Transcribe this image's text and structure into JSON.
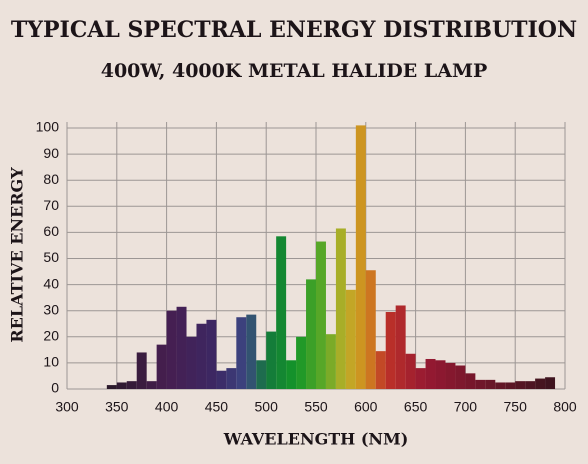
{
  "chart_data": {
    "type": "histogram",
    "title": "TYPICAL SPECTRAL ENERGY DISTRIBUTION",
    "subtitle": "400W, 4000K METAL HALIDE LAMP",
    "x_label": "WAVELENGTH (NM)",
    "y_label": "RELATIVE ENERGY",
    "bins": [
      340,
      350,
      360,
      370,
      380,
      390,
      400,
      410,
      420,
      430,
      440,
      450,
      460,
      470,
      480,
      490,
      500,
      510,
      520,
      530,
      540,
      550,
      560,
      570,
      580,
      590,
      600,
      610,
      620,
      630,
      640,
      650,
      660,
      670,
      680,
      690,
      700,
      710,
      720,
      730,
      740,
      750,
      760,
      770,
      780,
      790
    ],
    "counts": [
      1.5,
      2.5,
      3,
      14,
      3,
      17,
      30,
      31.5,
      20,
      25,
      26.5,
      7,
      8,
      27.5,
      28.5,
      11,
      22,
      58.5,
      11,
      20,
      42,
      56.5,
      21,
      61.5,
      38,
      101,
      45.5,
      14.5,
      29.5,
      32,
      13.5,
      8,
      11.5,
      11,
      10,
      9,
      6,
      3.5,
      3.5,
      2.5,
      2.5,
      3,
      3,
      4,
      4.5
    ],
    "xlim": [
      300,
      800
    ],
    "ylim": [
      0,
      100
    ],
    "xticks": [
      300,
      350,
      400,
      450,
      500,
      550,
      600,
      650,
      700,
      750,
      800
    ],
    "yticks": [
      0,
      10,
      20,
      30,
      40,
      50,
      60,
      70,
      80,
      90,
      100
    ],
    "grid": true
  }
}
